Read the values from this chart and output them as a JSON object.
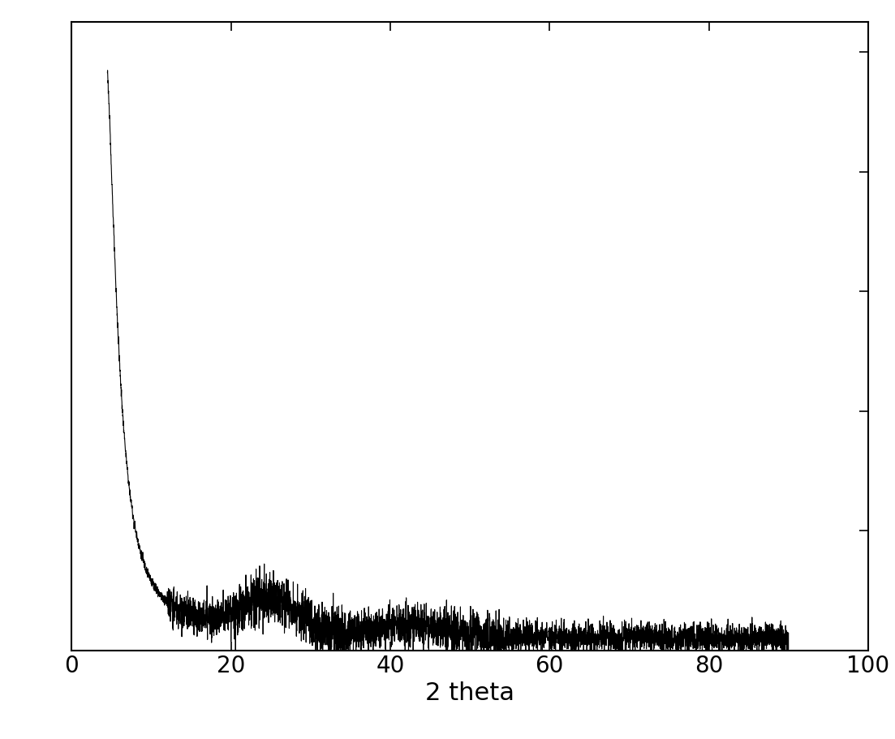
{
  "xlabel": "2 theta",
  "xlim": [
    0,
    100
  ],
  "ylim": [
    0,
    1.05
  ],
  "xticks": [
    0,
    20,
    40,
    60,
    80,
    100
  ],
  "xlabel_fontsize": 22,
  "xtick_fontsize": 20,
  "line_color": "#000000",
  "line_width": 0.8,
  "background_color": "#ffffff",
  "fig_width": 11.03,
  "fig_height": 9.11
}
